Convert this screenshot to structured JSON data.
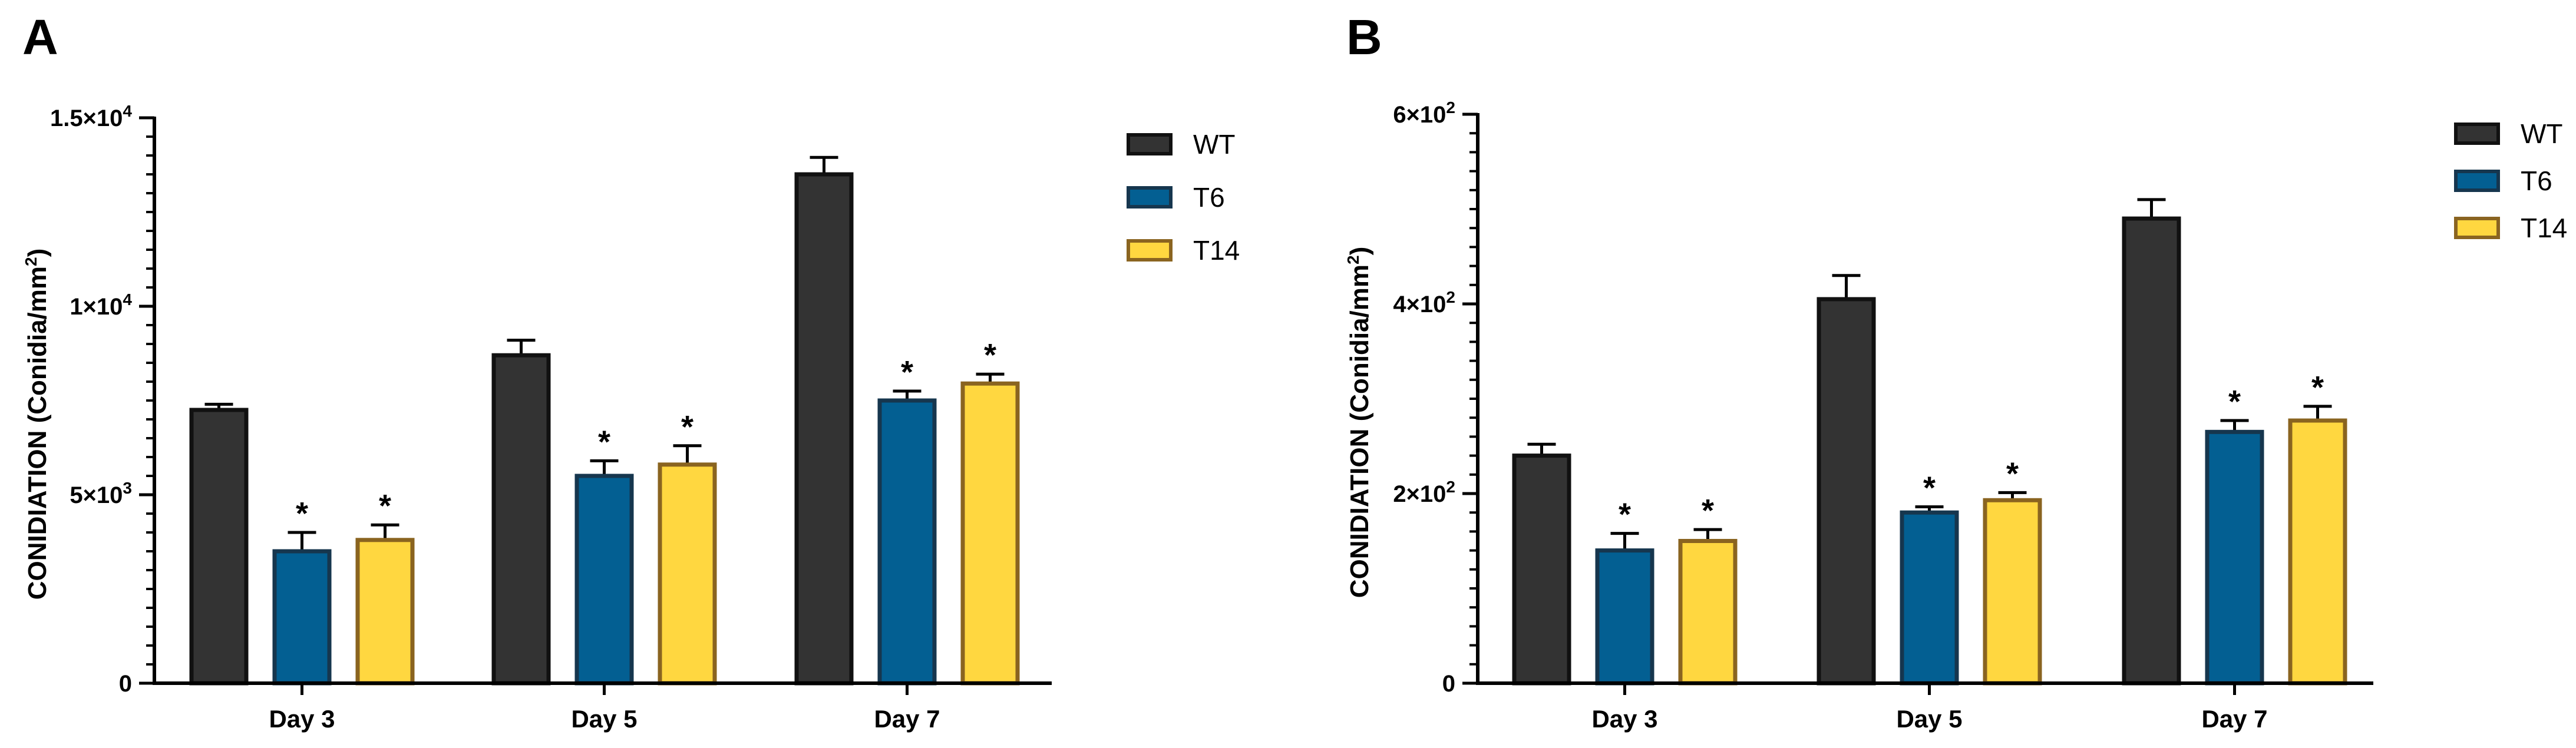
{
  "series_styles": {
    "WT": {
      "fill": "#333333",
      "stroke": "#111111"
    },
    "T6": {
      "fill": "#035f92",
      "stroke": "#16364e"
    },
    "T14": {
      "fill": "#ffd740",
      "stroke": "#8a6420"
    }
  },
  "chart_data": [
    {
      "panel": "A",
      "type": "bar",
      "ylabel_main": "CONIDIATION (Conidia/mm",
      "ylabel_sup": "2",
      "ylabel_close": ")",
      "ylim": [
        0,
        15000
      ],
      "major_ticks": [
        0,
        5000,
        10000,
        15000
      ],
      "minor_tick_step": 500,
      "tick_labels": [
        {
          "value": 0,
          "base": "0",
          "sup": ""
        },
        {
          "value": 5000,
          "base": "5×10",
          "sup": "3"
        },
        {
          "value": 10000,
          "base": "1×10",
          "sup": "4"
        },
        {
          "value": 15000,
          "base": "1.5×10",
          "sup": "4"
        }
      ],
      "categories": [
        "Day 3",
        "Day 5",
        "Day 7"
      ],
      "legend": [
        "WT",
        "T6",
        "T14"
      ],
      "series": [
        {
          "name": "WT",
          "values": [
            7250,
            8700,
            13500
          ],
          "errors": [
            150,
            400,
            450
          ],
          "sig": [
            "",
            "",
            ""
          ]
        },
        {
          "name": "T6",
          "values": [
            3500,
            5500,
            7500
          ],
          "errors": [
            500,
            400,
            250
          ],
          "sig": [
            "*",
            "*",
            "*"
          ]
        },
        {
          "name": "T14",
          "values": [
            3800,
            5800,
            7950
          ],
          "errors": [
            400,
            500,
            250
          ],
          "sig": [
            "*",
            "*",
            "*"
          ]
        }
      ]
    },
    {
      "panel": "B",
      "type": "bar",
      "ylabel_main": "CONIDIATION (Conidia/mm",
      "ylabel_sup": "2",
      "ylabel_close": ")",
      "ylim": [
        0,
        600
      ],
      "major_ticks": [
        0,
        200,
        400,
        600
      ],
      "minor_tick_step": 20,
      "tick_labels": [
        {
          "value": 0,
          "base": "0",
          "sup": ""
        },
        {
          "value": 200,
          "base": "2×10",
          "sup": "2"
        },
        {
          "value": 400,
          "base": "4×10",
          "sup": "2"
        },
        {
          "value": 600,
          "base": "6×10",
          "sup": "2"
        }
      ],
      "categories": [
        "Day 3",
        "Day 5",
        "Day 7"
      ],
      "legend": [
        "WT",
        "T6",
        "T14"
      ],
      "series": [
        {
          "name": "WT",
          "values": [
            240,
            405,
            490
          ],
          "errors": [
            12,
            25,
            20
          ],
          "sig": [
            "",
            "",
            ""
          ]
        },
        {
          "name": "T6",
          "values": [
            140,
            180,
            265
          ],
          "errors": [
            18,
            6,
            12
          ],
          "sig": [
            "*",
            "*",
            "*"
          ]
        },
        {
          "name": "T14",
          "values": [
            150,
            193,
            277
          ],
          "errors": [
            12,
            8,
            15
          ],
          "sig": [
            "*",
            "*",
            "*"
          ]
        }
      ]
    }
  ]
}
